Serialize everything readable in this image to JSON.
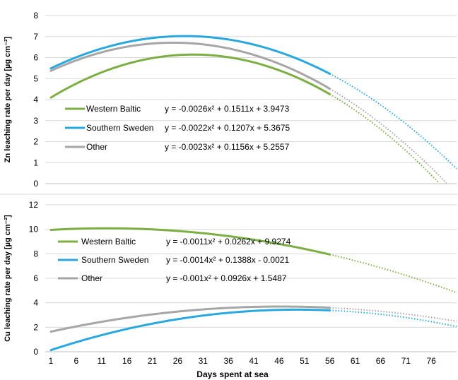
{
  "chart_data": [
    {
      "type": "line",
      "ylabel": "Zn leaching rate per day [µg cm⁻²]",
      "ylim": [
        0,
        8
      ],
      "yticks": [
        "0",
        "1",
        "2",
        "3",
        "4",
        "5",
        "6",
        "7",
        "8"
      ],
      "xlim": [
        1,
        81
      ],
      "x_observed_end": 56,
      "series": [
        {
          "name": "Western Baltic",
          "equation": "y = -0.0026x² + 0.1511x + 3.9473",
          "a": -0.0026,
          "b": 0.1511,
          "c": 3.9473,
          "color": "#7CAF42"
        },
        {
          "name": "Southern Sweden",
          "equation": "y = -0.0022x² + 0.1207x + 5.3675",
          "a": -0.0022,
          "b": 0.1207,
          "c": 5.3675,
          "color": "#29A8E0"
        },
        {
          "name": "Other",
          "equation": "y = -0.0023x² + 0.1156x + 5.2557",
          "a": -0.0023,
          "b": 0.1156,
          "c": 5.2557,
          "color": "#A6A6A6"
        }
      ]
    },
    {
      "type": "line",
      "ylabel": "Cu leaching rate per day [µg cm⁻²]",
      "ylim": [
        0,
        12
      ],
      "yticks": [
        "0",
        "2",
        "4",
        "6",
        "8",
        "10",
        "12"
      ],
      "xlabel": "Days spent at sea",
      "xticks": [
        "1",
        "6",
        "11",
        "16",
        "21",
        "26",
        "31",
        "36",
        "41",
        "46",
        "51",
        "56",
        "61",
        "66",
        "71",
        "76"
      ],
      "xlim": [
        1,
        81
      ],
      "x_observed_end": 56,
      "series": [
        {
          "name": "Western Baltic",
          "equation": "y = -0.0011x² + 0.0262x + 9.9274",
          "a": -0.0011,
          "b": 0.0262,
          "c": 9.9274,
          "color": "#7CAF42"
        },
        {
          "name": "Southern Sweden",
          "equation": "y = -0.0014x² + 0.1388x - 0.0021",
          "a": -0.0014,
          "b": 0.1388,
          "c": -0.0021,
          "color": "#29A8E0"
        },
        {
          "name": "Other",
          "equation": "y = -0.001x² + 0.0926x + 1.5487",
          "a": -0.001,
          "b": 0.0926,
          "c": 1.5487,
          "color": "#A6A6A6"
        }
      ]
    }
  ]
}
